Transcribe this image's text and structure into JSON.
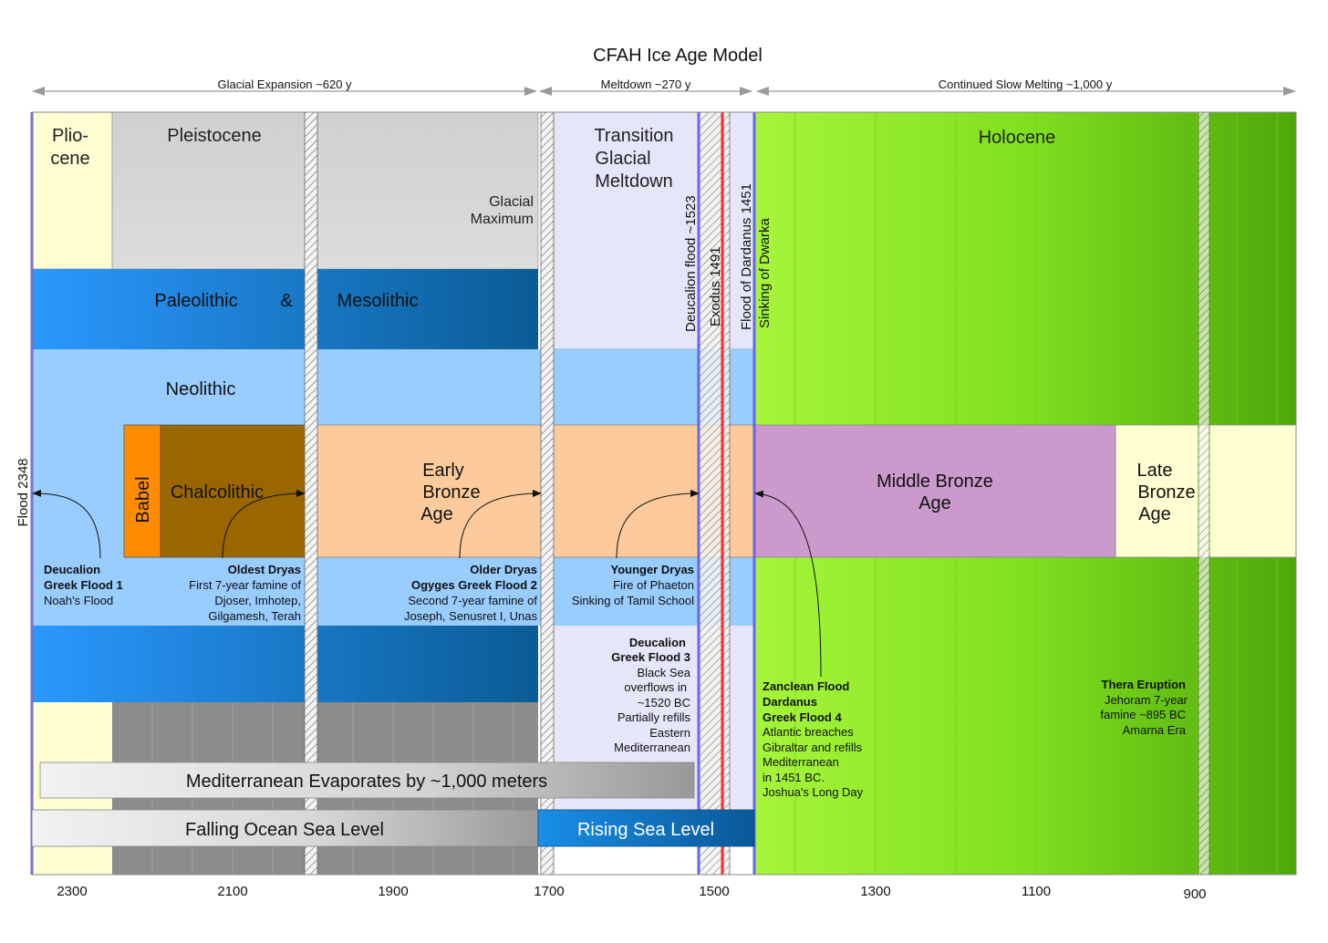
{
  "title": "CFAH Ice Age Model",
  "phases": [
    {
      "label": "Glacial Expansion ~620 y"
    },
    {
      "label": "Meltdown ~270 y"
    },
    {
      "label": "Continued Slow Melting ~1,000 y"
    }
  ],
  "axis_ticks": [
    "2300",
    "2100",
    "1900",
    "1700",
    "1500",
    "1300",
    "1100",
    "900"
  ],
  "epochs": {
    "pliocene": [
      "Plio-",
      "cene"
    ],
    "pleistocene": "Pleistocene",
    "glacial_maximum": [
      "Glacial",
      "Maximum"
    ],
    "transition": [
      "Transition",
      "Glacial",
      "Meltdown"
    ],
    "holocene": "Holocene"
  },
  "lithic": {
    "paleolithic": "Paleolithic",
    "amp": "&",
    "mesolithic": "Mesolithic",
    "neolithic": "Neolithic"
  },
  "ages": {
    "babel": "Babel",
    "chalcolithic": "Chalcolithic",
    "early_bronze": [
      "Early",
      "Bronze",
      "Age"
    ],
    "middle_bronze": [
      "Middle Bronze",
      "Age"
    ],
    "late_bronze": [
      "Late",
      "Bronze",
      "Age"
    ]
  },
  "vertical_events": {
    "flood": "Flood 2348",
    "deucalion": "Deucalion flood ~1523",
    "exodus": "Exodus 1491",
    "dardanus": "Flood of Dardanus 1451",
    "dwarka": "Sinking of Dwarka"
  },
  "events": {
    "greek1": {
      "bold": [
        "Deucalion",
        "Greek Flood 1"
      ],
      "lines": [
        "Noah's Flood"
      ]
    },
    "oldest_dryas": {
      "bold": [
        "Oldest Dryas"
      ],
      "lines": [
        "First 7-year famine of",
        "Djoser, Imhotep,",
        "Gilgamesh, Terah"
      ]
    },
    "older_dryas": {
      "bold": [
        "Older Dryas",
        "Ogyges Greek Flood 2"
      ],
      "lines": [
        "Second 7-year famine of",
        "Joseph, Senusret I, Unas"
      ]
    },
    "younger_dryas": {
      "bold": [
        "Younger Dryas"
      ],
      "lines": [
        "Fire of Phaeton",
        "Sinking of Tamil School"
      ]
    },
    "greek3": {
      "bold": [
        "Deucalion",
        "Greek Flood 3"
      ],
      "lines": [
        "Black Sea",
        "overflows in",
        "~1520 BC",
        "Partially refills",
        "Eastern",
        "Mediterranean"
      ]
    },
    "greek4": {
      "bold": [
        "Zanclean Flood",
        "Dardanus",
        "Greek Flood 4"
      ],
      "lines": [
        "Atlantic breaches",
        "Gibraltar and refills",
        "Mediterranean",
        "in 1451 BC.",
        "Joshua's Long Day"
      ]
    },
    "thera": {
      "bold": [
        "Thera Eruption"
      ],
      "lines": [
        "Jehoram 7-year",
        "famine ~895 BC",
        "Amarna Era"
      ]
    }
  },
  "sea": {
    "mediterranean": "Mediterranean Evaporates by ~1,000 meters",
    "falling": "Falling Ocean Sea Level",
    "rising": "Rising Sea Level"
  },
  "colors": {
    "pliocene": "#fefed2",
    "pleistocene": "#d8d8d8",
    "transition": "#e6e6fa",
    "paleolithic": "#1e90ff",
    "neolithic": "#99ccff",
    "babel": "#ff8c00",
    "chalcolithic": "#996600",
    "early_bronze": "#fdcb9b",
    "middle_bronze": "#cc99cc",
    "late_bronze": "#fefed2",
    "holocene": "#99ee33",
    "red_line": "#ff2a2a",
    "blue_line": "#6666ee"
  }
}
